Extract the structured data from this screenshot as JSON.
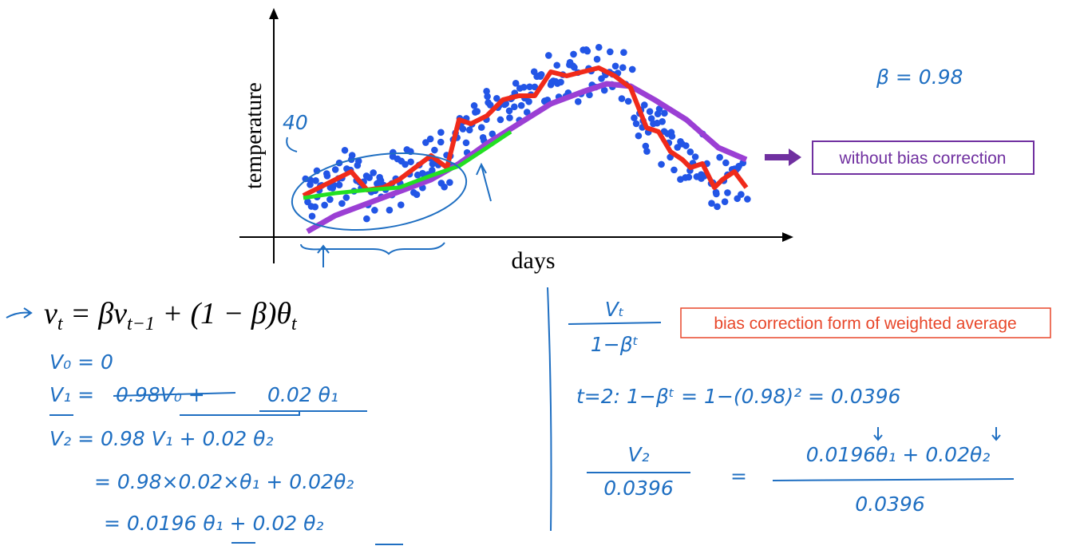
{
  "figure": {
    "y_label": "temperature",
    "x_label": "days",
    "annotation": "40",
    "beta": "β = 0.98",
    "legend": "without bias correction"
  },
  "equation": {
    "parts": [
      "v",
      "t",
      " = βv",
      "t−1",
      " + (1 − β)θ",
      "t"
    ]
  },
  "left_notes": {
    "v0": "V₀ = 0",
    "v1": {
      "lhs": "V₁ =",
      "struck": "0.98V₀ +",
      "rhs": "0.02 θ₁"
    },
    "v2": "V₂ = 0.98 V₁ + 0.02 θ₂",
    "step1": "= 0.98×0.02×θ₁ + 0.02θ₂",
    "step2": "= 0.0196 θ₁ + 0.02 θ₂"
  },
  "right_notes": {
    "frac_num": "Vₜ",
    "frac_den": "1−βᵗ",
    "label": "bias correction form of weighted average",
    "t2": "t=2:  1−βᵗ = 1−(0.98)² = 0.0396",
    "lhs_num": "V₂",
    "lhs_den": "0.0396",
    "eq": "=",
    "rhs_num": "0.0196θ₁ + 0.02θ₂",
    "rhs_den": "0.0396"
  }
}
